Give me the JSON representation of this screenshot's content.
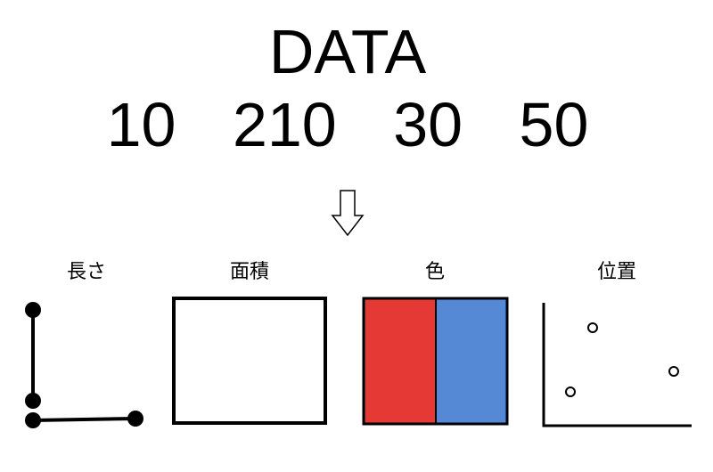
{
  "title": "DATA",
  "values": [
    "10",
    "210",
    "30",
    "50"
  ],
  "encodings": [
    {
      "label": "長さ",
      "icon": "length-icon"
    },
    {
      "label": "面積",
      "icon": "area-icon"
    },
    {
      "label": "色",
      "icon": "color-icon"
    },
    {
      "label": "位置",
      "icon": "position-icon"
    }
  ],
  "colors": {
    "red": "#e53935",
    "blue": "#5589d6",
    "stroke": "#000000"
  }
}
